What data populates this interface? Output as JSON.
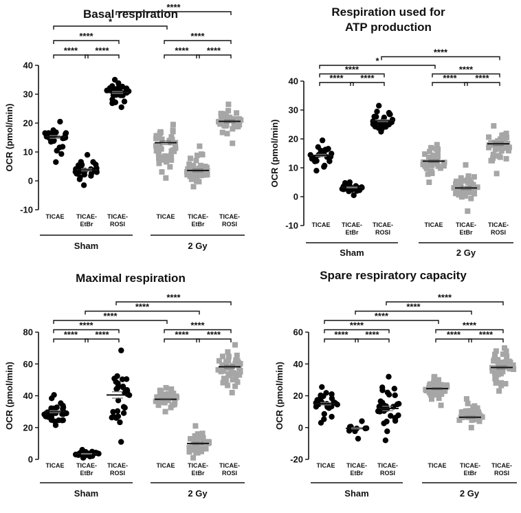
{
  "chart_data": [
    {
      "type": "scatter",
      "title": [
        "Basal respiration"
      ],
      "ylabel": "OCR (pmol/min)",
      "ylim": [
        -10,
        40
      ],
      "yticks": [
        -10,
        0,
        10,
        20,
        30,
        40
      ],
      "categories": [
        "TICAE",
        "TICAE-EtBr",
        "TICAE-ROSI",
        "TICAE",
        "TICAE-EtBr",
        "TICAE-ROSI"
      ],
      "groups": [
        {
          "name": "Sham",
          "span": [
            0,
            2
          ]
        },
        {
          "name": "2 Gy",
          "span": [
            3,
            5
          ]
        }
      ],
      "colors": [
        "#000000",
        "#000000",
        "#000000",
        "#a6a6a6",
        "#a6a6a6",
        "#a6a6a6"
      ],
      "markers": [
        "circle",
        "circle",
        "circle",
        "square",
        "square",
        "square"
      ],
      "series": [
        {
          "name": "TICAE",
          "mean": 15.2,
          "range": [
            6.5,
            20.5
          ],
          "n": 22
        },
        {
          "name": "TICAE-EtBr",
          "mean": 3.8,
          "range": [
            -1.5,
            9.0
          ],
          "n": 28
        },
        {
          "name": "TICAE-ROSI",
          "mean": 30.6,
          "range": [
            25.5,
            35.0
          ],
          "n": 30
        },
        {
          "name": "TICAE",
          "mean": 13.2,
          "range": [
            1.0,
            19.5
          ],
          "n": 45
        },
        {
          "name": "TICAE-EtBr",
          "mean": 3.6,
          "range": [
            -2.0,
            12.0
          ],
          "n": 45
        },
        {
          "name": "TICAE-ROSI",
          "mean": 20.6,
          "range": [
            13.0,
            26.5
          ],
          "n": 45
        }
      ],
      "comparisons": [
        {
          "from": 0,
          "to": 1,
          "label": "****",
          "level": 0
        },
        {
          "from": 1,
          "to": 2,
          "label": "****",
          "level": 0
        },
        {
          "from": 3,
          "to": 4,
          "label": "****",
          "level": 0
        },
        {
          "from": 4,
          "to": 5,
          "label": "****",
          "level": 0
        },
        {
          "from": 0,
          "to": 2,
          "label": "****",
          "level": 1
        },
        {
          "from": 3,
          "to": 5,
          "label": "****",
          "level": 1
        },
        {
          "from": 0,
          "to": 3,
          "label": "*",
          "level": 2
        },
        {
          "from": 2,
          "to": 5,
          "label": "****",
          "level": 3
        }
      ]
    },
    {
      "type": "scatter",
      "title": [
        "Respiration used for",
        "ATP production"
      ],
      "ylabel": "OCR (pmol/min)",
      "ylim": [
        -10,
        40
      ],
      "yticks": [
        -10,
        0,
        10,
        20,
        30,
        40
      ],
      "categories": [
        "TICAE",
        "TICAE-EtBr",
        "TICAE-ROSI",
        "TICAE",
        "TICAE-EtBr",
        "TICAE-ROSI"
      ],
      "groups": [
        {
          "name": "Sham",
          "span": [
            0,
            2
          ]
        },
        {
          "name": "2 Gy",
          "span": [
            3,
            5
          ]
        }
      ],
      "colors": [
        "#000000",
        "#000000",
        "#000000",
        "#a6a6a6",
        "#a6a6a6",
        "#a6a6a6"
      ],
      "markers": [
        "circle",
        "circle",
        "circle",
        "square",
        "square",
        "square"
      ],
      "series": [
        {
          "name": "TICAE",
          "mean": 14.3,
          "range": [
            9.0,
            19.5
          ],
          "n": 22
        },
        {
          "name": "TICAE-EtBr",
          "mean": 3.2,
          "range": [
            0.5,
            5.0
          ],
          "n": 28
        },
        {
          "name": "TICAE-ROSI",
          "mean": 26.3,
          "range": [
            22.5,
            31.5
          ],
          "n": 30
        },
        {
          "name": "TICAE",
          "mean": 12.3,
          "range": [
            5.0,
            18.0
          ],
          "n": 45
        },
        {
          "name": "TICAE-EtBr",
          "mean": 3.0,
          "range": [
            -5.0,
            11.0
          ],
          "n": 45
        },
        {
          "name": "TICAE-ROSI",
          "mean": 18.3,
          "range": [
            8.0,
            24.5
          ],
          "n": 45
        }
      ],
      "comparisons": [
        {
          "from": 0,
          "to": 1,
          "label": "****",
          "level": 0
        },
        {
          "from": 1,
          "to": 2,
          "label": "****",
          "level": 0
        },
        {
          "from": 3,
          "to": 4,
          "label": "****",
          "level": 0
        },
        {
          "from": 4,
          "to": 5,
          "label": "****",
          "level": 0
        },
        {
          "from": 0,
          "to": 2,
          "label": "****",
          "level": 1
        },
        {
          "from": 3,
          "to": 5,
          "label": "****",
          "level": 1
        },
        {
          "from": 0,
          "to": 3,
          "label": "*",
          "level": 2
        },
        {
          "from": 2,
          "to": 5,
          "label": "****",
          "level": 3
        }
      ]
    },
    {
      "type": "scatter",
      "title": [
        "Maximal respiration"
      ],
      "ylabel": "OCR (pmol/min)",
      "ylim": [
        0,
        80
      ],
      "yticks": [
        0,
        20,
        40,
        60,
        80
      ],
      "categories": [
        "TICAE",
        "TICAE-EtBr",
        "TICAE-ROSI",
        "TICAE",
        "TICAE-EtBr",
        "TICAE-ROSI"
      ],
      "groups": [
        {
          "name": "Sham",
          "span": [
            0,
            2
          ]
        },
        {
          "name": "2 Gy",
          "span": [
            3,
            5
          ]
        }
      ],
      "colors": [
        "#000000",
        "#000000",
        "#000000",
        "#a6a6a6",
        "#a6a6a6",
        "#a6a6a6"
      ],
      "markers": [
        "circle",
        "circle",
        "circle",
        "square",
        "square",
        "square"
      ],
      "series": [
        {
          "name": "TICAE",
          "mean": 30.0,
          "range": [
            21.5,
            40.5
          ],
          "n": 30
        },
        {
          "name": "TICAE-EtBr",
          "mean": 3.5,
          "range": [
            1.0,
            6.0
          ],
          "n": 25
        },
        {
          "name": "TICAE-ROSI",
          "mean": 40.5,
          "range": [
            11.0,
            68.5
          ],
          "n": 30
        },
        {
          "name": "TICAE",
          "mean": 37.8,
          "range": [
            30.0,
            45.0
          ],
          "n": 45
        },
        {
          "name": "TICAE-EtBr",
          "mean": 10.0,
          "range": [
            1.0,
            21.0
          ],
          "n": 40
        },
        {
          "name": "TICAE-ROSI",
          "mean": 58.2,
          "range": [
            42.0,
            72.0
          ],
          "n": 45
        }
      ],
      "comparisons": [
        {
          "from": 0,
          "to": 1,
          "label": "****",
          "level": 0
        },
        {
          "from": 1,
          "to": 2,
          "label": "****",
          "level": 0
        },
        {
          "from": 3,
          "to": 4,
          "label": "****",
          "level": 0
        },
        {
          "from": 4,
          "to": 5,
          "label": "****",
          "level": 0
        },
        {
          "from": 0,
          "to": 2,
          "label": "****",
          "level": 1
        },
        {
          "from": 3,
          "to": 5,
          "label": "****",
          "level": 1
        },
        {
          "from": 0,
          "to": 3,
          "label": "****",
          "level": 2
        },
        {
          "from": 1,
          "to": 4,
          "label": "****",
          "level": 3
        },
        {
          "from": 2,
          "to": 5,
          "label": "****",
          "level": 4
        }
      ]
    },
    {
      "type": "scatter",
      "title": [
        "Spare respiratory capacity"
      ],
      "ylabel": "OCR (pmol/min)",
      "ylim": [
        -20,
        60
      ],
      "yticks": [
        -20,
        0,
        20,
        40,
        60
      ],
      "categories": [
        "TICAE",
        "TICAE-EtBr",
        "TICAE-ROSI",
        "TICAE",
        "TICAE-EtBr",
        "TICAE-ROSI"
      ],
      "groups": [
        {
          "name": "Sham",
          "span": [
            0,
            2
          ]
        },
        {
          "name": "2 Gy",
          "span": [
            3,
            5
          ]
        }
      ],
      "colors": [
        "#000000",
        "#000000",
        "#000000",
        "#a6a6a6",
        "#a6a6a6",
        "#a6a6a6"
      ],
      "markers": [
        "circle",
        "circle",
        "circle",
        "square",
        "square",
        "square"
      ],
      "series": [
        {
          "name": "TICAE",
          "mean": 15.0,
          "range": [
            3.0,
            25.5
          ],
          "n": 25
        },
        {
          "name": "TICAE-EtBr",
          "mean": -0.5,
          "range": [
            -7.0,
            4.0
          ],
          "n": 10
        },
        {
          "name": "TICAE-ROSI",
          "mean": 12.0,
          "range": [
            -8.0,
            32.0
          ],
          "n": 30
        },
        {
          "name": "TICAE",
          "mean": 24.5,
          "range": [
            14.0,
            32.0
          ],
          "n": 45
        },
        {
          "name": "TICAE-EtBr",
          "mean": 6.5,
          "range": [
            0.0,
            18.0
          ],
          "n": 35
        },
        {
          "name": "TICAE-ROSI",
          "mean": 37.8,
          "range": [
            23.0,
            50.0
          ],
          "n": 45
        }
      ],
      "comparisons": [
        {
          "from": 0,
          "to": 1,
          "label": "****",
          "level": 0
        },
        {
          "from": 1,
          "to": 2,
          "label": "****",
          "level": 0
        },
        {
          "from": 3,
          "to": 4,
          "label": "****",
          "level": 0
        },
        {
          "from": 4,
          "to": 5,
          "label": "****",
          "level": 0
        },
        {
          "from": 0,
          "to": 2,
          "label": "****",
          "level": 1
        },
        {
          "from": 3,
          "to": 5,
          "label": "****",
          "level": 1
        },
        {
          "from": 0,
          "to": 3,
          "label": "****",
          "level": 2
        },
        {
          "from": 1,
          "to": 4,
          "label": "****",
          "level": 3
        },
        {
          "from": 2,
          "to": 5,
          "label": "****",
          "level": 4
        }
      ]
    }
  ]
}
